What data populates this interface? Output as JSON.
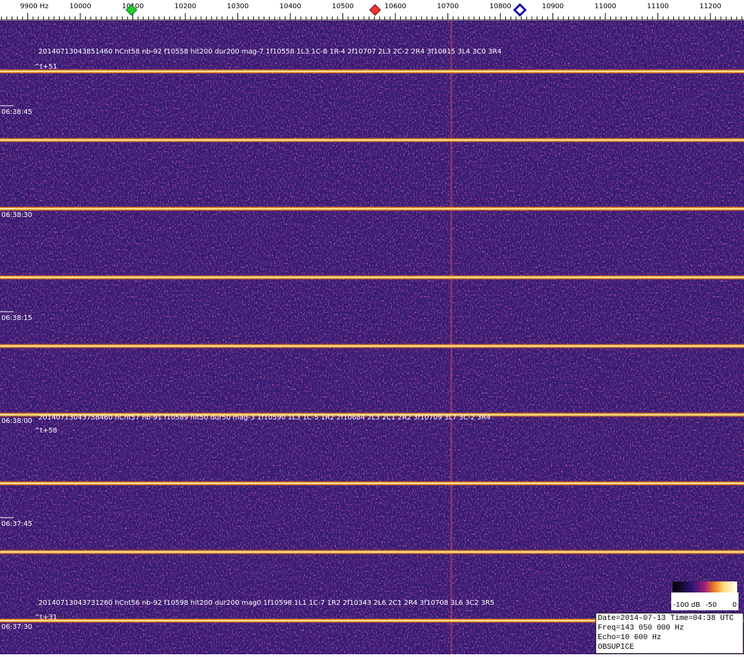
{
  "frequency_axis": {
    "labels": [
      "9900 Hz",
      "10000",
      "10100",
      "10200",
      "10300",
      "10400",
      "10500",
      "10600",
      "10700",
      "10800",
      "10900",
      "11000",
      "11100",
      "11200"
    ]
  },
  "time_labels": [
    "06:38:45",
    "06:38:30",
    "06:38:15",
    "06:38:00",
    "06:37:45",
    "06:37:30"
  ],
  "detections": [
    {
      "text": "20140713043851460 hCnt58 nb-92 f10558 hit200 dur200 mag-7 1f10558 1L3 1C-8 1R-4 2f10707 2L3 2C-2 2R4 3f10815 3L4 3C0 3R4",
      "offset": "^t+51"
    },
    {
      "text": "20140713043758460 hCnt57 nb-91 f10589 hit50 dur50 mag-3 1f10590 1L3 1C-5 1R2 2f10684 2L3 2C1 2R2 3f10709 3L7 3C-2 3R4",
      "offset": "^t+58"
    },
    {
      "text": "20140713043731260 hCnt56 nb-92 f10598 hit200 dur200 mag0 1f10598 1L1 1C-7 1R2 2f10343 2L6 2C1 2R4 3f10708 3L6 3C2 3R5",
      "offset": "^t+31"
    }
  ],
  "colorbar": {
    "labels": [
      "-100 dB",
      "-50",
      "0"
    ]
  },
  "info_box": {
    "lines": [
      "Date=2014-07-13 Time=04:38 UTC",
      "Freq=143 050 000 Hz",
      "Echo=10 600 Hz",
      "OBSUPICE"
    ]
  }
}
